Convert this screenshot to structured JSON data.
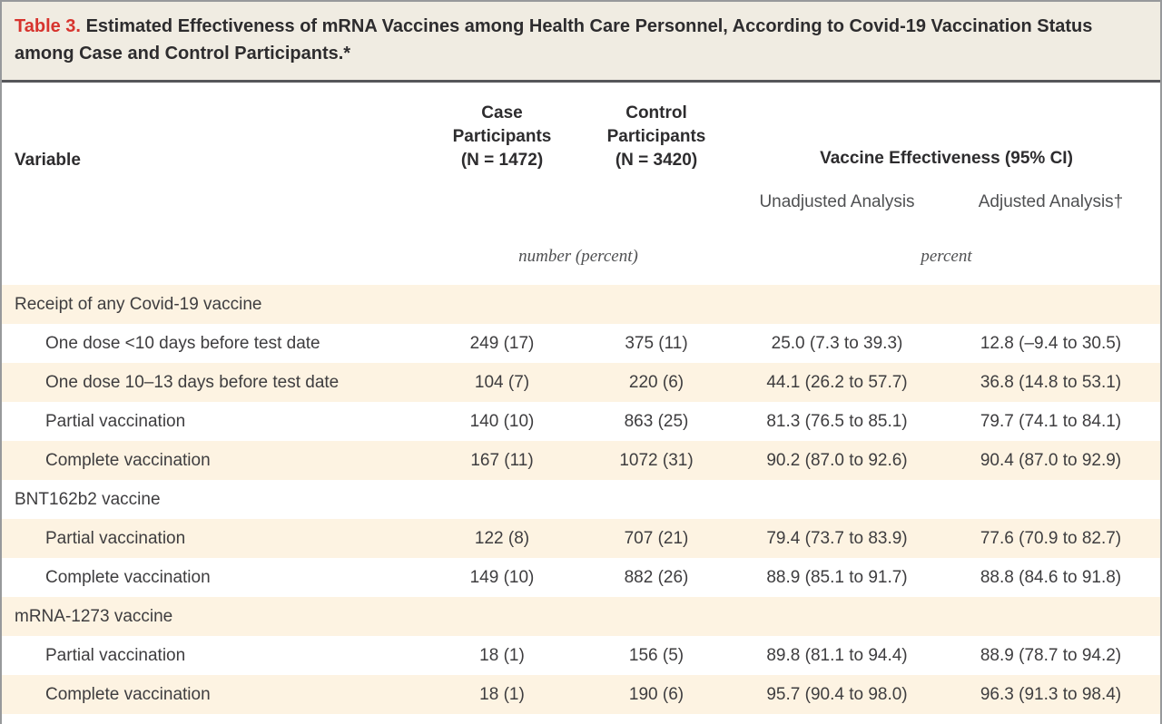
{
  "colors": {
    "title-bg": "#f0ece2",
    "title-red": "#d7342e",
    "rule": "#55565a",
    "border": "#97999b",
    "stripe": "#fdf3e2",
    "text-dark": "#2d2c2e",
    "text-body": "#3e3d3f",
    "text-sub": "#4f5052"
  },
  "table": {
    "title": {
      "label": "Table 3.",
      "text": "Estimated Effectiveness of mRNA Vaccines among Health Care Personnel, According to Covid-19 Vaccination Status among Case and Control Participants.*"
    },
    "header": {
      "variable": "Variable",
      "case_participants": "Case\nParticipants\n(N = 1472)",
      "control_participants": "Control\nParticipants\n(N = 3420)",
      "effectiveness_group": "Vaccine Effectiveness (95% CI)",
      "unadjusted": "Unadjusted Analysis",
      "adjusted": "Adjusted Analysis†",
      "unit_counts": "number (percent)",
      "unit_effectiveness": "percent"
    },
    "rows": [
      {
        "label": "Receipt of any Covid-19 vaccine",
        "indent": false,
        "case": "",
        "control": "",
        "unadjusted": "",
        "adjusted": ""
      },
      {
        "label": "One dose <10 days before test date",
        "indent": true,
        "case": "249 (17)",
        "control": "375 (11)",
        "unadjusted": "25.0 (7.3 to 39.3)",
        "adjusted": "12.8 (–9.4 to 30.5)"
      },
      {
        "label": "One dose 10–13 days before test date",
        "indent": true,
        "case": "104 (7)",
        "control": "220 (6)",
        "unadjusted": "44.1 (26.2 to 57.7)",
        "adjusted": "36.8 (14.8 to 53.1)"
      },
      {
        "label": "Partial vaccination",
        "indent": true,
        "case": "140 (10)",
        "control": "863 (25)",
        "unadjusted": "81.3 (76.5 to 85.1)",
        "adjusted": "79.7 (74.1 to 84.1)"
      },
      {
        "label": "Complete vaccination",
        "indent": true,
        "case": "167 (11)",
        "control": "1072 (31)",
        "unadjusted": "90.2 (87.0 to 92.6)",
        "adjusted": "90.4 (87.0 to 92.9)"
      },
      {
        "label": "BNT162b2 vaccine",
        "indent": false,
        "case": "",
        "control": "",
        "unadjusted": "",
        "adjusted": ""
      },
      {
        "label": "Partial vaccination",
        "indent": true,
        "case": "122 (8)",
        "control": "707 (21)",
        "unadjusted": "79.4 (73.7 to 83.9)",
        "adjusted": "77.6 (70.9 to 82.7)"
      },
      {
        "label": "Complete vaccination",
        "indent": true,
        "case": "149 (10)",
        "control": "882 (26)",
        "unadjusted": "88.9 (85.1 to 91.7)",
        "adjusted": "88.8 (84.6 to 91.8)"
      },
      {
        "label": "mRNA-1273 vaccine",
        "indent": false,
        "case": "",
        "control": "",
        "unadjusted": "",
        "adjusted": ""
      },
      {
        "label": "Partial vaccination",
        "indent": true,
        "case": "18 (1)",
        "control": "156 (5)",
        "unadjusted": "89.8 (81.1 to 94.4)",
        "adjusted": "88.9 (78.7 to 94.2)"
      },
      {
        "label": "Complete vaccination",
        "indent": true,
        "case": "18 (1)",
        "control": "190 (6)",
        "unadjusted": "95.7 (90.4 to 98.0)",
        "adjusted": "96.3 (91.3 to 98.4)"
      }
    ]
  }
}
